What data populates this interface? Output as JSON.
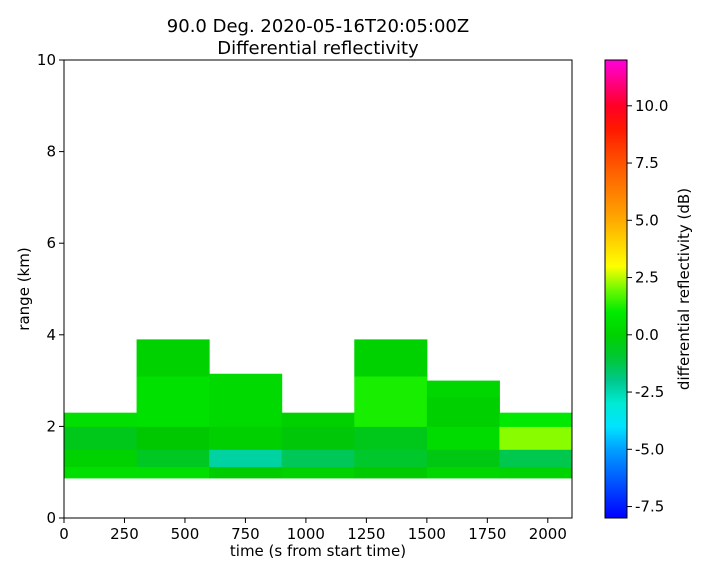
{
  "chart_data": {
    "type": "heatmap",
    "title": "90.0 Deg. 2020-05-16T20:05:00Z",
    "subtitle": "Differential reflectivity",
    "xlabel": "time (s from start time)",
    "ylabel": "range (km)",
    "xlim": [
      0,
      2100
    ],
    "ylim": [
      0,
      10
    ],
    "x_ticks": [
      0,
      250,
      500,
      750,
      1000,
      1250,
      1500,
      1750,
      2000
    ],
    "y_ticks": [
      0,
      2,
      4,
      6,
      8,
      10
    ],
    "grid": false,
    "colorbar": {
      "label": "differential reflectivity (dB)",
      "range": [
        -8,
        12
      ],
      "ticks": [
        "-7.5",
        "-5.0",
        "-2.5",
        "0.0",
        "2.5",
        "5.0",
        "7.5",
        "10.0"
      ],
      "colormap": "hsv"
    },
    "time_bins": [
      0,
      300,
      600,
      900,
      1200,
      1500,
      1800,
      2100
    ],
    "cells": [
      {
        "t": [
          0,
          300
        ],
        "r": [
          0.875,
          1.125
        ],
        "v": 0.5
      },
      {
        "t": [
          0,
          300
        ],
        "r": [
          1.125,
          1.5
        ],
        "v": 0.0
      },
      {
        "t": [
          0,
          300
        ],
        "r": [
          1.5,
          2.0
        ],
        "v": -0.7
      },
      {
        "t": [
          0,
          300
        ],
        "r": [
          2.0,
          2.3
        ],
        "v": 0.5
      },
      {
        "t": [
          300,
          600
        ],
        "r": [
          0.875,
          1.125
        ],
        "v": 0.5
      },
      {
        "t": [
          300,
          600
        ],
        "r": [
          1.125,
          1.5
        ],
        "v": -0.8
      },
      {
        "t": [
          300,
          600
        ],
        "r": [
          1.5,
          2.0
        ],
        "v": -0.4
      },
      {
        "t": [
          300,
          600
        ],
        "r": [
          2.0,
          3.1
        ],
        "v": 0.6
      },
      {
        "t": [
          300,
          600
        ],
        "r": [
          3.1,
          3.9
        ],
        "v": 0.0
      },
      {
        "t": [
          600,
          900
        ],
        "r": [
          0.875,
          1.125
        ],
        "v": -0.2
      },
      {
        "t": [
          600,
          900
        ],
        "r": [
          1.125,
          1.5
        ],
        "v": -2.3
      },
      {
        "t": [
          600,
          900
        ],
        "r": [
          1.5,
          2.0
        ],
        "v": -0.1
      },
      {
        "t": [
          600,
          900
        ],
        "r": [
          2.0,
          3.15
        ],
        "v": 0.3
      },
      {
        "t": [
          900,
          1200
        ],
        "r": [
          0.875,
          1.125
        ],
        "v": 0.0
      },
      {
        "t": [
          900,
          1200
        ],
        "r": [
          1.125,
          1.5
        ],
        "v": -1.4
      },
      {
        "t": [
          900,
          1200
        ],
        "r": [
          1.5,
          2.0
        ],
        "v": -0.5
      },
      {
        "t": [
          900,
          1200
        ],
        "r": [
          2.0,
          2.3
        ],
        "v": -0.1
      },
      {
        "t": [
          1200,
          1500
        ],
        "r": [
          0.875,
          1.125
        ],
        "v": -0.3
      },
      {
        "t": [
          1200,
          1500
        ],
        "r": [
          1.125,
          1.5
        ],
        "v": -0.9
      },
      {
        "t": [
          1200,
          1500
        ],
        "r": [
          1.5,
          2.0
        ],
        "v": -0.7
      },
      {
        "t": [
          1200,
          1500
        ],
        "r": [
          2.0,
          3.1
        ],
        "v": 1.2
      },
      {
        "t": [
          1200,
          1500
        ],
        "r": [
          3.1,
          3.9
        ],
        "v": 0.0
      },
      {
        "t": [
          1500,
          1800
        ],
        "r": [
          0.875,
          1.125
        ],
        "v": 0.2
      },
      {
        "t": [
          1500,
          1800
        ],
        "r": [
          1.125,
          1.5
        ],
        "v": -0.6
      },
      {
        "t": [
          1500,
          1800
        ],
        "r": [
          1.5,
          2.0
        ],
        "v": 0.4
      },
      {
        "t": [
          1500,
          1800
        ],
        "r": [
          2.0,
          2.65
        ],
        "v": -0.1
      },
      {
        "t": [
          1500,
          1800
        ],
        "r": [
          2.65,
          3.0
        ],
        "v": 0.2
      },
      {
        "t": [
          1800,
          2100
        ],
        "r": [
          0.875,
          1.125
        ],
        "v": 0.1
      },
      {
        "t": [
          1800,
          2100
        ],
        "r": [
          1.125,
          1.5
        ],
        "v": -1.3
      },
      {
        "t": [
          1800,
          2100
        ],
        "r": [
          1.5,
          2.0
        ],
        "v": 2.2
      },
      {
        "t": [
          1800,
          2100
        ],
        "r": [
          2.0,
          2.3
        ],
        "v": 0.9
      }
    ]
  }
}
